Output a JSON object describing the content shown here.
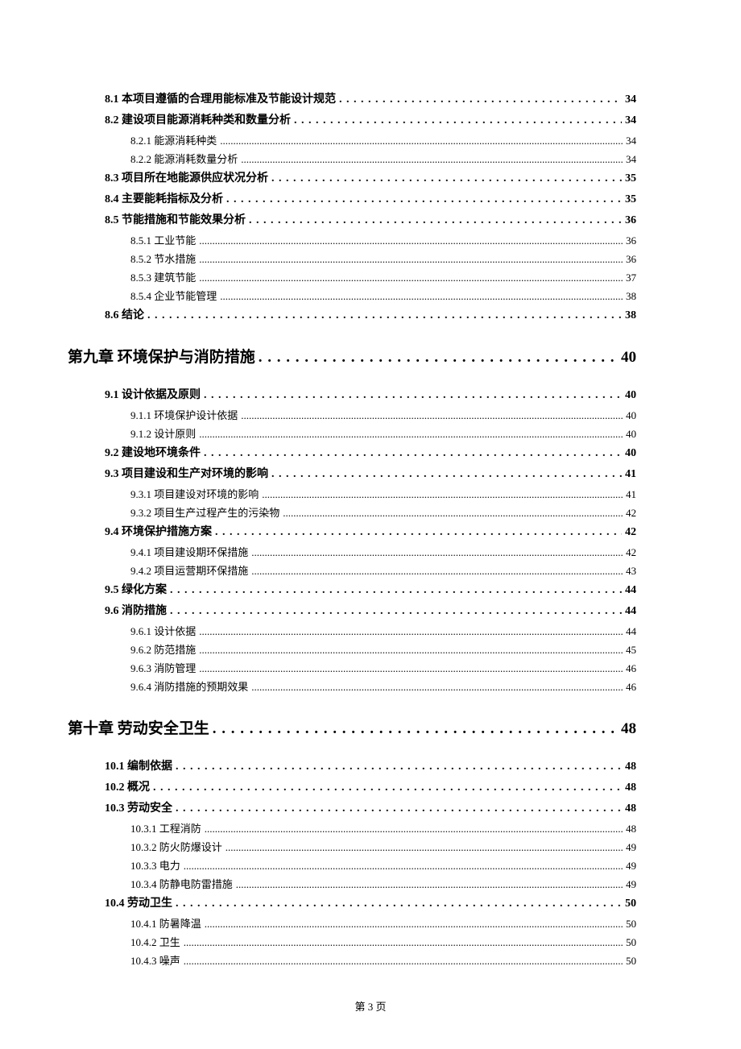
{
  "page_footer": "第 3 页",
  "colors": {
    "text": "#000000",
    "background": "#ffffff"
  },
  "typography": {
    "body_font": "SimSun",
    "chapter_font": "KaiTi",
    "section_fontsize_pt": 10.5,
    "subsection_fontsize_pt": 10,
    "chapter_fontsize_pt": 14.5
  },
  "toc": [
    {
      "level": "section",
      "label": "8.1 本项目遵循的合理用能标准及节能设计规范",
      "page": "34"
    },
    {
      "level": "section",
      "label": "8.2 建设项目能源消耗种类和数量分析",
      "page": "34"
    },
    {
      "level": "subsection",
      "label": "8.2.1 能源消耗种类",
      "page": "34"
    },
    {
      "level": "subsection",
      "label": "8.2.2 能源消耗数量分析",
      "page": "34"
    },
    {
      "level": "section",
      "label": "8.3 项目所在地能源供应状况分析",
      "page": "35"
    },
    {
      "level": "section",
      "label": "8.4 主要能耗指标及分析",
      "page": "35"
    },
    {
      "level": "section",
      "label": "8.5 节能措施和节能效果分析",
      "page": "36"
    },
    {
      "level": "subsection",
      "label": "8.5.1 工业节能",
      "page": "36"
    },
    {
      "level": "subsection",
      "label": "8.5.2 节水措施",
      "page": "36"
    },
    {
      "level": "subsection",
      "label": "8.5.3 建筑节能",
      "page": "37"
    },
    {
      "level": "subsection",
      "label": "8.5.4 企业节能管理",
      "page": "38"
    },
    {
      "level": "section",
      "label": "8.6 结论",
      "page": "38"
    },
    {
      "level": "chapter",
      "label": "第九章  环境保护与消防措施",
      "page": "40"
    },
    {
      "level": "section",
      "label": "9.1 设计依据及原则",
      "page": "40"
    },
    {
      "level": "subsection",
      "label": "9.1.1 环境保护设计依据",
      "page": "40"
    },
    {
      "level": "subsection",
      "label": "9.1.2 设计原则",
      "page": "40"
    },
    {
      "level": "section",
      "label": "9.2 建设地环境条件",
      "page": "40"
    },
    {
      "level": "section",
      "label": "9.3  项目建设和生产对环境的影响",
      "page": "41"
    },
    {
      "level": "subsection",
      "label": "9.3.1  项目建设对环境的影响",
      "page": "41"
    },
    {
      "level": "subsection",
      "label": "9.3.2 项目生产过程产生的污染物",
      "page": "42"
    },
    {
      "level": "section",
      "label": "9.4  环境保护措施方案",
      "page": "42"
    },
    {
      "level": "subsection",
      "label": "9.4.1  项目建设期环保措施",
      "page": "42"
    },
    {
      "level": "subsection",
      "label": "9.4.2  项目运营期环保措施",
      "page": "43"
    },
    {
      "level": "section",
      "label": "9.5 绿化方案",
      "page": "44"
    },
    {
      "level": "section",
      "label": "9.6 消防措施",
      "page": "44"
    },
    {
      "level": "subsection",
      "label": "9.6.1 设计依据",
      "page": "44"
    },
    {
      "level": "subsection",
      "label": "9.6.2 防范措施",
      "page": "45"
    },
    {
      "level": "subsection",
      "label": "9.6.3 消防管理",
      "page": "46"
    },
    {
      "level": "subsection",
      "label": "9.6.4 消防措施的预期效果",
      "page": "46"
    },
    {
      "level": "chapter",
      "label": "第十章  劳动安全卫生",
      "page": "48"
    },
    {
      "level": "section",
      "label": "10.1  编制依据",
      "page": "48"
    },
    {
      "level": "section",
      "label": "10.2 概况",
      "page": "48"
    },
    {
      "level": "section",
      "label": "10.3  劳动安全",
      "page": "48"
    },
    {
      "level": "subsection",
      "label": "10.3.1 工程消防",
      "page": "48"
    },
    {
      "level": "subsection",
      "label": "10.3.2 防火防爆设计",
      "page": "49"
    },
    {
      "level": "subsection",
      "label": "10.3.3 电力",
      "page": "49"
    },
    {
      "level": "subsection",
      "label": "10.3.4 防静电防雷措施",
      "page": "49"
    },
    {
      "level": "section",
      "label": "10.4 劳动卫生",
      "page": "50"
    },
    {
      "level": "subsection",
      "label": "10.4.1 防暑降温",
      "page": "50"
    },
    {
      "level": "subsection",
      "label": "10.4.2 卫生",
      "page": "50"
    },
    {
      "level": "subsection",
      "label": "10.4.3 噪声",
      "page": "50"
    }
  ]
}
